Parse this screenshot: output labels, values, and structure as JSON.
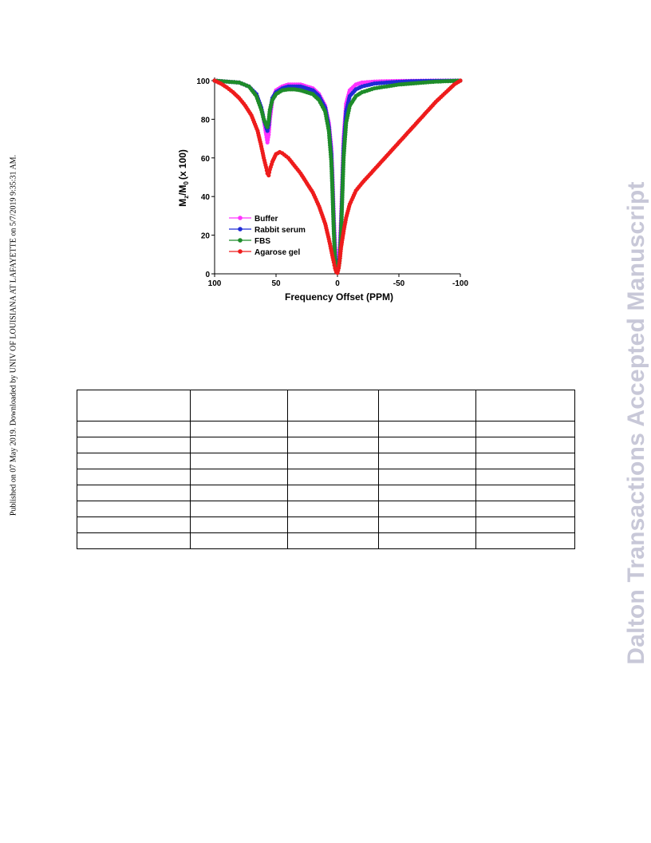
{
  "side_note": "Published on 07 May 2019. Downloaded by UNIV OF LOUISIANA AT LAFAYETTE on 5/7/2019 9:35:31 AM.",
  "watermark": "Dalton Transactions Accepted Manuscript",
  "chart_data": {
    "type": "line",
    "xlabel": "Frequency Offset (PPM)",
    "ylabel_main": "M",
    "ylabel_sub1": "z",
    "ylabel_mid": "/M",
    "ylabel_sub2": "0",
    "ylabel_tail": "(x 100)",
    "xlim": [
      100,
      -100
    ],
    "ylim": [
      0,
      100
    ],
    "x_ticks": [
      100,
      50,
      0,
      -50,
      -100
    ],
    "x_tick_labels": [
      "100",
      "50",
      "0",
      "-50",
      "-100"
    ],
    "y_ticks": [
      0,
      20,
      40,
      60,
      80,
      100
    ],
    "y_tick_labels": [
      "0",
      "20",
      "40",
      "60",
      "80",
      "100"
    ],
    "legend_position": "lower-left",
    "series": [
      {
        "name": "Buffer",
        "color": "#ff33ff",
        "x": [
          100,
          90,
          80,
          72,
          66,
          62,
          60,
          58,
          57,
          56,
          55,
          53,
          50,
          45,
          40,
          35,
          30,
          25,
          20,
          15,
          10,
          7,
          5,
          4,
          3,
          2,
          1,
          0,
          -1,
          -2,
          -3,
          -4,
          -5,
          -7,
          -10,
          -15,
          -20,
          -30,
          -40,
          -50,
          -60,
          -80,
          -100
        ],
        "y": [
          100,
          99.5,
          99,
          97,
          93,
          86,
          80,
          72,
          68,
          72,
          80,
          90,
          95,
          97,
          98,
          98,
          98,
          97,
          96,
          93,
          87,
          78,
          65,
          50,
          30,
          15,
          6,
          2,
          6,
          15,
          30,
          50,
          70,
          88,
          95,
          98,
          99,
          99.5,
          99.7,
          99.8,
          99.9,
          100,
          100
        ]
      },
      {
        "name": "Rabbit serum",
        "color": "#1f2bd6",
        "x": [
          100,
          90,
          80,
          72,
          66,
          62,
          60,
          58,
          57,
          56,
          55,
          53,
          50,
          45,
          40,
          35,
          30,
          25,
          20,
          15,
          10,
          7,
          5,
          4,
          3,
          2,
          1,
          0,
          -1,
          -2,
          -3,
          -4,
          -5,
          -7,
          -10,
          -15,
          -20,
          -30,
          -40,
          -50,
          -60,
          -80,
          -100
        ],
        "y": [
          100,
          99.5,
          99,
          97,
          93,
          86,
          80,
          76,
          74,
          77,
          84,
          91,
          94,
          96,
          97,
          97,
          97,
          96,
          95,
          92,
          86,
          76,
          62,
          45,
          25,
          10,
          4,
          2,
          4,
          10,
          25,
          45,
          65,
          84,
          92,
          95.5,
          97,
          98.5,
          99,
          99.4,
          99.7,
          99.9,
          100
        ]
      },
      {
        "name": "FBS",
        "color": "#1e8c2a",
        "x": [
          100,
          90,
          80,
          72,
          66,
          62,
          60,
          58,
          57,
          56,
          55,
          53,
          50,
          45,
          40,
          35,
          30,
          25,
          20,
          15,
          10,
          7,
          5,
          4,
          3,
          2,
          1,
          0,
          -1,
          -2,
          -3,
          -4,
          -5,
          -7,
          -10,
          -15,
          -20,
          -30,
          -40,
          -50,
          -60,
          -80,
          -100
        ],
        "y": [
          100,
          99.5,
          99,
          97,
          92,
          85,
          80,
          77,
          76,
          79,
          85,
          90,
          93,
          95,
          95.5,
          95.5,
          95,
          94,
          93,
          90,
          84,
          74,
          58,
          42,
          22,
          8,
          3,
          2,
          3,
          8,
          22,
          42,
          60,
          78,
          87,
          92,
          94,
          96,
          97,
          98,
          98.5,
          99.5,
          100
        ]
      },
      {
        "name": "Agarose gel",
        "color": "#ee1c1c",
        "x": [
          100,
          95,
          90,
          85,
          80,
          75,
          70,
          65,
          62,
          60,
          58,
          57,
          56,
          55,
          53,
          50,
          47,
          45,
          40,
          35,
          30,
          25,
          20,
          15,
          10,
          7,
          5,
          3,
          2,
          1,
          0,
          -1,
          -2,
          -3,
          -5,
          -7,
          -10,
          -15,
          -20,
          -30,
          -40,
          -50,
          -60,
          -70,
          -80,
          -90,
          -95,
          -100
        ],
        "y": [
          100,
          98.5,
          96.5,
          94,
          91,
          87,
          82,
          74,
          66,
          60,
          55,
          52,
          51,
          54,
          58,
          62,
          63,
          62.5,
          60,
          56,
          52,
          47,
          42,
          35,
          26,
          18,
          12,
          6,
          3,
          1,
          0.5,
          3,
          8,
          14,
          22,
          29,
          36,
          43,
          47,
          54,
          61,
          68,
          75,
          82,
          89,
          95,
          98,
          100
        ]
      }
    ]
  },
  "table": {
    "header": [
      "",
      "",
      "",
      "",
      ""
    ],
    "rows": [
      [
        "",
        "",
        "",
        "",
        ""
      ],
      [
        "",
        "",
        "",
        "",
        ""
      ],
      [
        "",
        "",
        "",
        "",
        ""
      ],
      [
        "",
        "",
        "",
        "",
        ""
      ],
      [
        "",
        "",
        "",
        "",
        ""
      ],
      [
        "",
        "",
        "",
        "",
        ""
      ],
      [
        "",
        "",
        "",
        "",
        ""
      ],
      [
        "",
        "",
        "",
        "",
        ""
      ]
    ]
  }
}
